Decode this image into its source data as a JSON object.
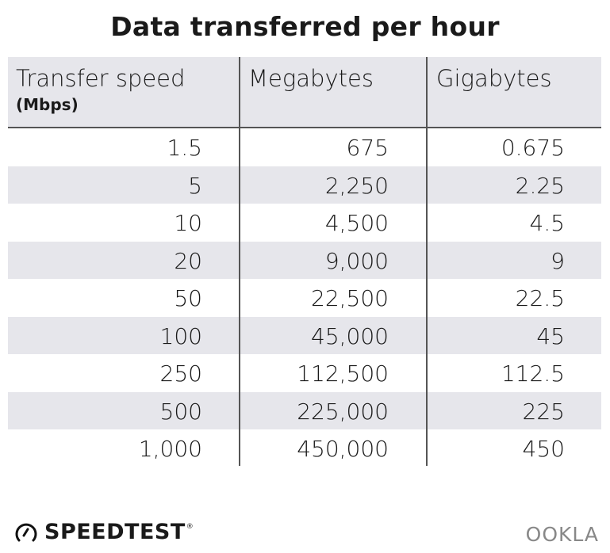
{
  "title": "Data transferred per hour",
  "chart_data": {
    "type": "table",
    "title": "Data transferred per hour",
    "columns": [
      "Transfer speed",
      "Megabytes",
      "Gigabytes"
    ],
    "column_subtitles": [
      "(Mbps)",
      "",
      ""
    ],
    "rows": [
      [
        "1.5",
        "675",
        "0.675"
      ],
      [
        "5",
        "2,250",
        "2.25"
      ],
      [
        "10",
        "4,500",
        "4.5"
      ],
      [
        "20",
        "9,000",
        "9"
      ],
      [
        "50",
        "22,500",
        "22.5"
      ],
      [
        "100",
        "45,000",
        "45"
      ],
      [
        "250",
        "112,500",
        "112.5"
      ],
      [
        "500",
        "225,000",
        "225"
      ],
      [
        "1,000",
        "450,000",
        "450"
      ]
    ],
    "colors": {
      "header_bg": "#e6e6eb",
      "stripe_bg": "#e6e6eb",
      "rule": "#555555"
    }
  },
  "footer": {
    "brand_left": "SPEEDTEST",
    "brand_left_mark": "®",
    "brand_right": "OOKLA"
  }
}
